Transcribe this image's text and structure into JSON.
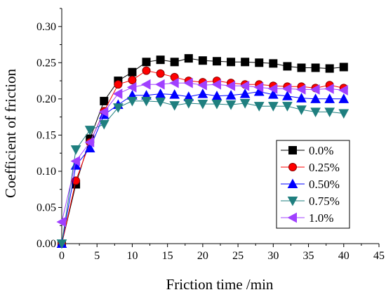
{
  "chart_data": {
    "type": "line",
    "title": "",
    "xlabel": "Friction time /min",
    "ylabel": "Coefficient of friction",
    "xlim": [
      0,
      45
    ],
    "ylim": [
      0,
      0.325
    ],
    "xticks": [
      0,
      5,
      10,
      15,
      20,
      25,
      30,
      35,
      40,
      45
    ],
    "yticks": [
      0.0,
      0.05,
      0.1,
      0.15,
      0.2,
      0.25,
      0.3
    ],
    "ytick_labels": [
      "0.00",
      "0.05",
      "0.10",
      "0.15",
      "0.20",
      "0.25",
      "0.30"
    ],
    "grid": false,
    "legend_position": "right",
    "x": [
      0,
      2,
      4,
      6,
      8,
      10,
      12,
      14,
      16,
      18,
      20,
      22,
      24,
      26,
      28,
      30,
      32,
      34,
      36,
      38,
      40
    ],
    "series": [
      {
        "name": "0.0%",
        "marker": "square",
        "color": "#000000",
        "values": [
          0.0,
          0.082,
          0.145,
          0.197,
          0.225,
          0.237,
          0.251,
          0.254,
          0.251,
          0.256,
          0.253,
          0.252,
          0.251,
          0.251,
          0.25,
          0.249,
          0.245,
          0.243,
          0.243,
          0.242,
          0.244
        ]
      },
      {
        "name": "0.25%",
        "marker": "circle",
        "color": "#ff0000",
        "edge": "#8b0000",
        "values": [
          0.0,
          0.087,
          0.14,
          0.183,
          0.22,
          0.226,
          0.239,
          0.235,
          0.23,
          0.225,
          0.223,
          0.225,
          0.222,
          0.22,
          0.22,
          0.218,
          0.217,
          0.217,
          0.215,
          0.219,
          0.215
        ]
      },
      {
        "name": "0.50%",
        "marker": "triangle-up",
        "color": "#0000ff",
        "values": [
          0.0,
          0.108,
          0.132,
          0.178,
          0.192,
          0.205,
          0.205,
          0.207,
          0.206,
          0.203,
          0.207,
          0.204,
          0.205,
          0.207,
          0.21,
          0.206,
          0.204,
          0.201,
          0.2,
          0.2,
          0.2
        ]
      },
      {
        "name": "0.75%",
        "marker": "triangle-down",
        "color": "#1f7f7f",
        "values": [
          0.0,
          0.13,
          0.157,
          0.165,
          0.188,
          0.197,
          0.197,
          0.196,
          0.191,
          0.194,
          0.193,
          0.193,
          0.192,
          0.194,
          0.19,
          0.19,
          0.19,
          0.185,
          0.182,
          0.182,
          0.18
        ]
      },
      {
        "name": "1.0%",
        "marker": "triangle-left",
        "color": "#a040ff",
        "values": [
          0.03,
          0.114,
          0.14,
          0.182,
          0.207,
          0.216,
          0.22,
          0.22,
          0.222,
          0.222,
          0.219,
          0.22,
          0.218,
          0.218,
          0.216,
          0.214,
          0.214,
          0.213,
          0.213,
          0.214,
          0.212
        ]
      }
    ]
  }
}
